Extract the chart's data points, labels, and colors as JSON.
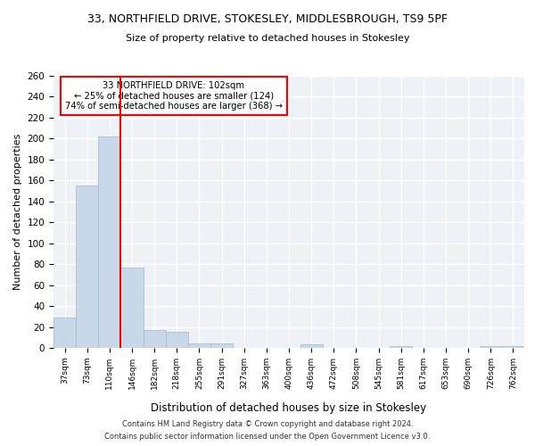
{
  "title1": "33, NORTHFIELD DRIVE, STOKESLEY, MIDDLESBROUGH, TS9 5PF",
  "title2": "Size of property relative to detached houses in Stokesley",
  "xlabel": "Distribution of detached houses by size in Stokesley",
  "ylabel": "Number of detached properties",
  "categories": [
    "37sqm",
    "73sqm",
    "110sqm",
    "146sqm",
    "182sqm",
    "218sqm",
    "255sqm",
    "291sqm",
    "327sqm",
    "363sqm",
    "400sqm",
    "436sqm",
    "472sqm",
    "508sqm",
    "545sqm",
    "581sqm",
    "617sqm",
    "653sqm",
    "690sqm",
    "726sqm",
    "762sqm"
  ],
  "values": [
    29,
    155,
    202,
    77,
    17,
    15,
    4,
    4,
    0,
    0,
    0,
    3,
    0,
    0,
    0,
    2,
    0,
    0,
    0,
    2,
    2
  ],
  "bar_color": "#c8d8e8",
  "bar_edge_color": "#a0b8cc",
  "annotation_title": "33 NORTHFIELD DRIVE: 102sqm",
  "annotation_line1": "← 25% of detached houses are smaller (124)",
  "annotation_line2": "74% of semi-detached houses are larger (368) →",
  "annotation_box_color": "white",
  "annotation_border_color": "red",
  "vline_color": "red",
  "vline_x": 2.5,
  "ylim": [
    0,
    260
  ],
  "yticks": [
    0,
    20,
    40,
    60,
    80,
    100,
    120,
    140,
    160,
    180,
    200,
    220,
    240,
    260
  ],
  "background_color": "#eef2f7",
  "grid_color": "white",
  "footer1": "Contains HM Land Registry data © Crown copyright and database right 2024.",
  "footer2": "Contains public sector information licensed under the Open Government Licence v3.0."
}
